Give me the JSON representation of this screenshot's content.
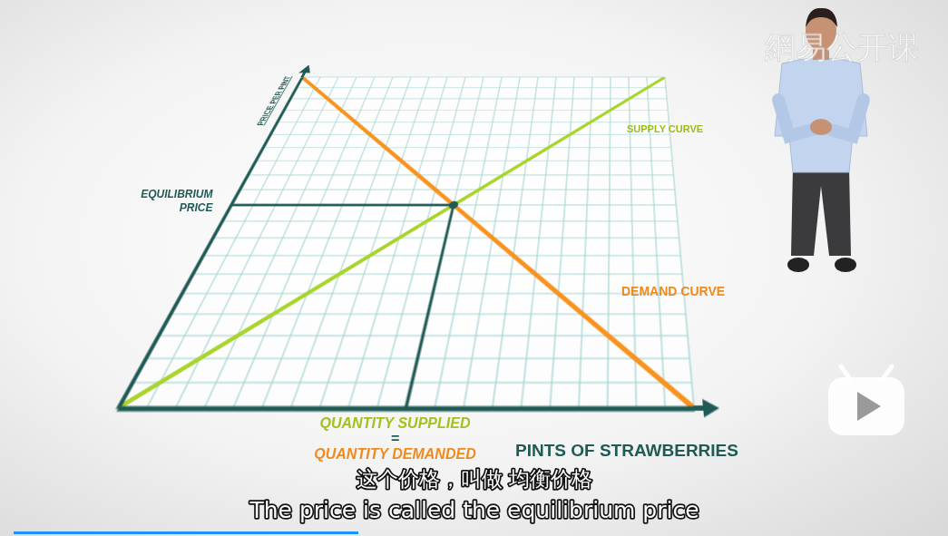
{
  "chart_data": {
    "type": "line",
    "x_label": "PINTS OF STRAWBERRIES",
    "y_label": "PRICE PER PINT",
    "x": [
      0,
      10
    ],
    "series": [
      {
        "name": "SUPPLY CURVE",
        "color": "#a8d42c",
        "values": [
          0,
          10
        ]
      },
      {
        "name": "DEMAND CURVE",
        "color": "#f7931e",
        "values": [
          10,
          0
        ]
      }
    ],
    "xlim": [
      0,
      10
    ],
    "ylim": [
      0,
      10
    ],
    "xticks": [
      0,
      0.5,
      1,
      1.5,
      2,
      2.5,
      3,
      3.5,
      4,
      4.5,
      5,
      5.5,
      6,
      6.5,
      7,
      7.5,
      8,
      8.5,
      9,
      9.5,
      10
    ],
    "yticks": [
      0,
      0.5,
      1,
      1.5,
      2,
      2.5,
      3,
      3.5,
      4,
      4.5,
      5,
      5.5,
      6,
      6.5,
      7,
      7.5,
      8,
      8.5,
      9,
      9.5,
      10
    ],
    "grid": true,
    "tick_labels": false,
    "annotations": {
      "equilibrium": {
        "x": 5,
        "y": 5,
        "price_label": "EQUILIBRIUM PRICE",
        "quantity_label": [
          "QUANTITY SUPPLIED",
          "=",
          "QUANTITY DEMANDED"
        ]
      }
    }
  },
  "subtitles": [
    "这个价格，叫做 均衡价格",
    "The price is called the equilibrium price"
  ],
  "watermark": "網易公开课"
}
